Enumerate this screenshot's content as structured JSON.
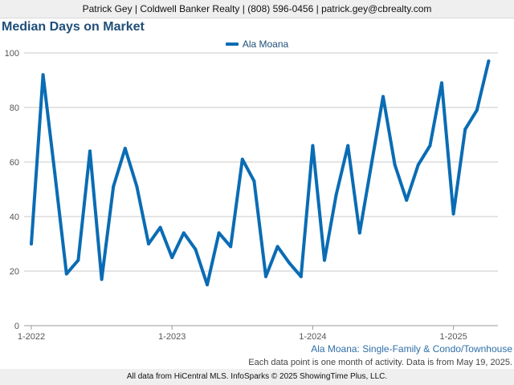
{
  "header": {
    "contact": "Patrick Gey | Coldwell Banker Realty | (808) 596-0456 | patrick.gey@cbrealty.com"
  },
  "chart_data": {
    "type": "line",
    "title": "Median Days on Market",
    "xlabel": "",
    "ylabel": "",
    "ylim": [
      0,
      100
    ],
    "yticks": [
      0,
      20,
      40,
      60,
      80,
      100
    ],
    "x_ticks": [
      {
        "label": "1-2022",
        "index": 0
      },
      {
        "label": "1-2023",
        "index": 12
      },
      {
        "label": "1-2024",
        "index": 24
      },
      {
        "label": "1-2025",
        "index": 36
      }
    ],
    "grid": true,
    "legend": "top-center",
    "series": [
      {
        "name": "Ala Moana",
        "color": "#0a6cb4",
        "values": [
          30,
          92,
          56,
          19,
          24,
          64,
          17,
          51,
          65,
          51,
          30,
          36,
          25,
          34,
          28,
          15,
          34,
          29,
          61,
          53,
          18,
          29,
          23,
          18,
          66,
          24,
          48,
          66,
          34,
          59,
          84,
          59,
          46,
          59,
          66,
          89,
          41,
          72,
          79,
          97
        ]
      }
    ]
  },
  "subtitle": "Ala Moana: Single-Family & Condo/Townhouse",
  "note": "Each data point is one month of activity. Data is from May 19, 2025.",
  "footer": "All data from HiCentral MLS. InfoSparks © 2025 ShowingTime Plus, LLC."
}
